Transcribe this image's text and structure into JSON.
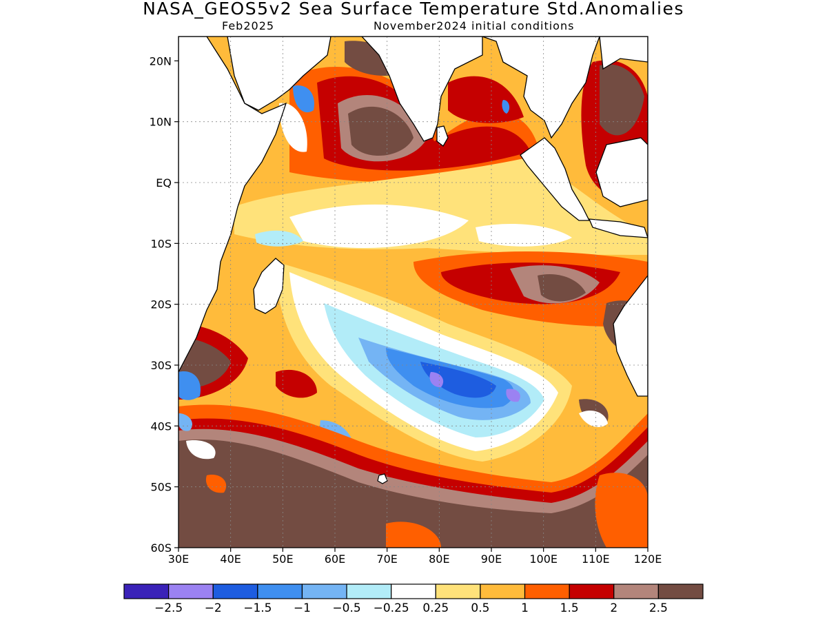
{
  "title": "NASA_GEOS5v2 Sea Surface Temperature Std.Anomalies",
  "subtitle_left": "Feb2025",
  "subtitle_right": "November2024 initial conditions",
  "map": {
    "lon_range": [
      30,
      120
    ],
    "lat_range": [
      -60,
      24
    ],
    "lon_ticks": [
      "30E",
      "40E",
      "50E",
      "60E",
      "70E",
      "80E",
      "90E",
      "100E",
      "110E",
      "120E"
    ],
    "lat_ticks": [
      "20N",
      "10N",
      "EQ",
      "10S",
      "20S",
      "30S",
      "40S",
      "50S",
      "60S"
    ],
    "grid": "dotted",
    "land_color": "#ffffff",
    "coastline_color": "#000000"
  },
  "colorbar": {
    "colors": [
      "#3a22b8",
      "#9b82f2",
      "#1e5de0",
      "#3f8ff0",
      "#74b4f4",
      "#b2ecf8",
      "#ffffff",
      "#ffe27a",
      "#ffbb3b",
      "#ff5f00",
      "#c50000",
      "#b3857b",
      "#734c42"
    ],
    "labels": [
      "−2.5",
      "−2",
      "−1.5",
      "−1",
      "−0.5",
      "−0.25",
      "0.25",
      "0.5",
      "1",
      "1.5",
      "2",
      "2.5"
    ]
  }
}
